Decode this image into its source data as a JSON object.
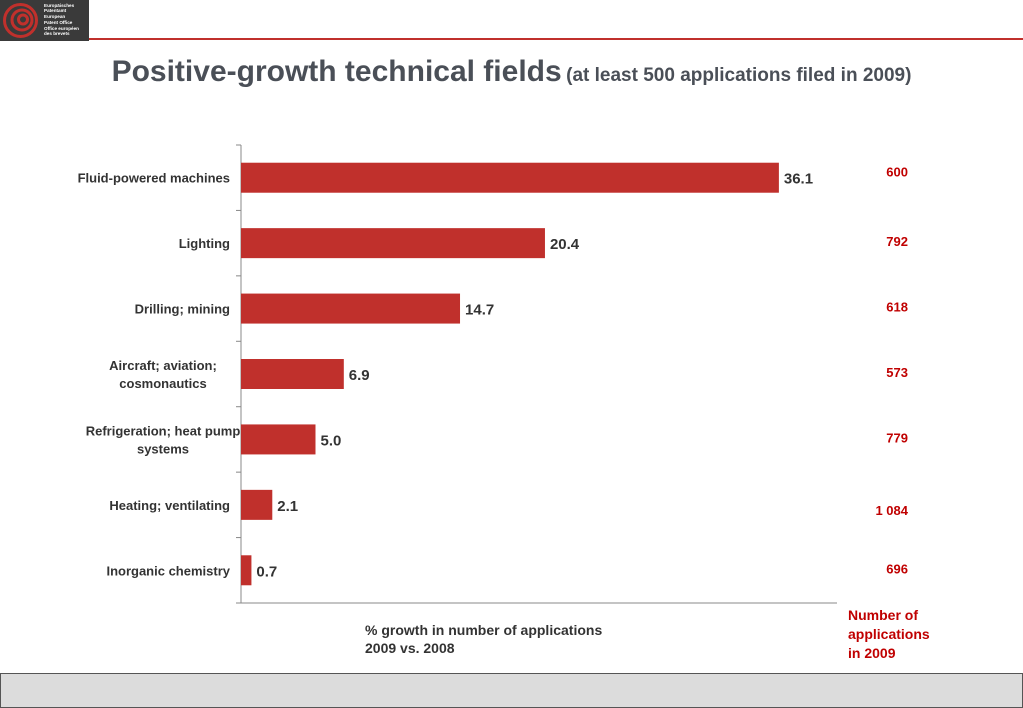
{
  "logo": {
    "lines": [
      "Europäisches",
      "Patentamt",
      "European",
      "Patent Office",
      "Office européen",
      "des brevets"
    ]
  },
  "title": {
    "main": "Positive-growth technical fields",
    "sub": "(at least 500 applications filed in 2009)"
  },
  "colors": {
    "bar": "#c0302c",
    "accent": "#c00000"
  },
  "chart_data": {
    "type": "bar",
    "orientation": "horizontal",
    "title": "Positive-growth technical fields",
    "categories": [
      "Fluid-powered machines",
      "Lighting",
      "Drilling; mining",
      "Aircraft; aviation; cosmonautics",
      "Refrigeration; heat pump systems",
      "Heating; ventilating",
      "Inorganic chemistry"
    ],
    "category_lines": [
      [
        "Fluid-powered machines"
      ],
      [
        "Lighting"
      ],
      [
        "Drilling; mining"
      ],
      [
        "Aircraft; aviation;",
        "cosmonautics"
      ],
      [
        "Refrigeration; heat pump",
        "systems"
      ],
      [
        "Heating; ventilating"
      ],
      [
        "Inorganic chemistry"
      ]
    ],
    "values": [
      36.1,
      20.4,
      14.7,
      6.9,
      5.0,
      2.1,
      0.7
    ],
    "value_labels": [
      "36.1",
      "20.4",
      "14.7",
      "6.9",
      "5.0",
      "2.1",
      "0.7"
    ],
    "applications": [
      "600",
      "792",
      "618",
      "573",
      "779",
      "1 084",
      "696"
    ],
    "xlabel_lines": [
      "% growth in number of applications",
      "2009 vs. 2008"
    ],
    "applications_label_lines": [
      "Number of",
      "applications",
      "in 2009"
    ],
    "xlim": [
      0,
      40
    ],
    "grid": false,
    "legend": "none"
  }
}
